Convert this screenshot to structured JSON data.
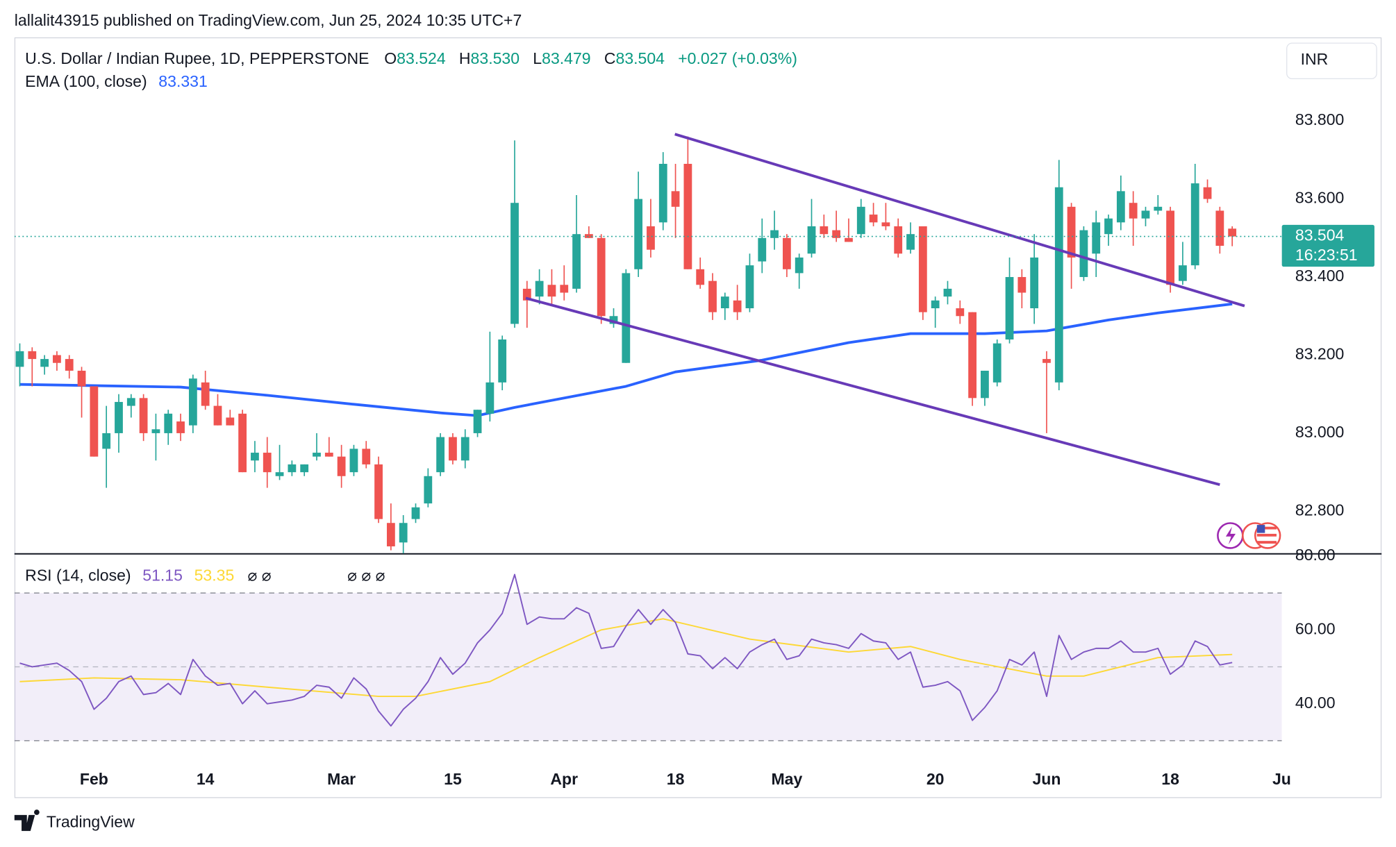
{
  "header": {
    "published": "lallalit43915 published on TradingView.com, Jun 25, 2024 10:35 UTC+7",
    "currency": "INR",
    "brand": "TradingView"
  },
  "chart_data": [
    {
      "type": "candlestick",
      "title": "U.S. Dollar / Indian Rupee, 1D, PEPPERSTONE",
      "readout": [
        "O",
        "83.524",
        "H",
        "83.530",
        "L",
        "83.479",
        "C",
        "83.504",
        "+0.027 (+0.03%)"
      ],
      "countdown": "16:23:51",
      "up_color": "#26a69a",
      "down_color": "#ef5350",
      "categories": [
        null,
        null,
        null,
        null,
        null,
        null,
        "Feb",
        null,
        null,
        null,
        null,
        null,
        null,
        null,
        null,
        "14",
        null,
        null,
        null,
        null,
        null,
        null,
        null,
        null,
        null,
        null,
        "Mar",
        null,
        null,
        null,
        null,
        null,
        null,
        null,
        null,
        "15",
        null,
        null,
        null,
        null,
        null,
        null,
        null,
        null,
        "Apr",
        null,
        null,
        null,
        null,
        null,
        null,
        null,
        null,
        "18",
        null,
        null,
        null,
        null,
        null,
        null,
        null,
        null,
        "May",
        null,
        null,
        null,
        null,
        null,
        null,
        null,
        null,
        null,
        null,
        null,
        "20",
        null,
        null,
        null,
        null,
        null,
        null,
        null,
        null,
        "Jun",
        null,
        null,
        null,
        null,
        null,
        null,
        null,
        null,
        null,
        "18",
        null,
        null,
        null,
        null,
        null,
        null,
        null,
        null,
        "Ju"
      ],
      "open": [
        83.17,
        83.21,
        83.17,
        83.2,
        83.19,
        83.16,
        83.12,
        82.96,
        83.0,
        83.07,
        83.09,
        83.0,
        83.0,
        83.03,
        83.02,
        83.13,
        83.07,
        83.04,
        83.05,
        82.93,
        82.95,
        82.89,
        82.9,
        82.9,
        82.94,
        82.95,
        82.94,
        82.9,
        82.96,
        82.92,
        82.77,
        82.72,
        82.78,
        82.82,
        82.9,
        82.99,
        82.93,
        83.0,
        83.05,
        83.13,
        83.28,
        83.37,
        83.35,
        83.38,
        83.38,
        83.37,
        83.51,
        83.5,
        83.28,
        83.18,
        83.42,
        83.53,
        83.54,
        83.62,
        83.69,
        83.42,
        83.39,
        83.32,
        83.34,
        83.32,
        83.44,
        83.5,
        83.5,
        83.41,
        83.46,
        83.53,
        83.52,
        83.5,
        83.51,
        83.56,
        83.54,
        83.53,
        83.47,
        83.53,
        83.32,
        83.35,
        83.32,
        83.31,
        83.09,
        83.13,
        83.24,
        83.4,
        83.32,
        83.19,
        83.13,
        83.58,
        83.4,
        83.46,
        83.51,
        83.54,
        83.59,
        83.55,
        83.57,
        83.57,
        83.39,
        83.43,
        83.63,
        83.57,
        83.524,
        null,
        null,
        null,
        null
      ],
      "high": [
        83.23,
        83.22,
        83.2,
        83.21,
        83.2,
        83.17,
        83.12,
        83.07,
        83.1,
        83.1,
        83.1,
        83.05,
        83.06,
        83.05,
        83.15,
        83.16,
        83.1,
        83.06,
        83.06,
        82.98,
        82.99,
        82.97,
        82.93,
        82.92,
        83.0,
        82.99,
        82.97,
        82.97,
        82.98,
        82.94,
        82.82,
        82.79,
        82.82,
        82.91,
        83.0,
        83.0,
        83.01,
        83.06,
        83.26,
        83.25,
        83.75,
        83.39,
        83.42,
        83.42,
        83.43,
        83.61,
        83.53,
        83.51,
        83.32,
        83.42,
        83.67,
        83.6,
        83.72,
        83.69,
        83.76,
        83.45,
        83.41,
        83.36,
        83.38,
        83.46,
        83.55,
        83.57,
        83.51,
        83.46,
        83.6,
        83.56,
        83.57,
        83.55,
        83.6,
        83.59,
        83.59,
        83.55,
        83.54,
        83.53,
        83.35,
        83.39,
        83.34,
        83.31,
        83.16,
        83.24,
        83.45,
        83.42,
        83.51,
        83.21,
        83.7,
        83.59,
        83.53,
        83.57,
        83.56,
        83.66,
        83.62,
        83.58,
        83.61,
        83.58,
        83.49,
        83.69,
        83.65,
        83.58,
        83.53,
        null,
        null,
        null,
        null
      ],
      "low": [
        83.12,
        83.12,
        83.15,
        83.16,
        83.14,
        83.04,
        82.94,
        82.86,
        82.95,
        83.04,
        82.98,
        82.93,
        82.97,
        82.98,
        83.0,
        83.06,
        83.02,
        83.02,
        82.9,
        82.9,
        82.86,
        82.88,
        82.89,
        82.89,
        82.93,
        82.94,
        82.86,
        82.89,
        82.91,
        82.77,
        82.7,
        82.69,
        82.77,
        82.81,
        82.89,
        82.92,
        82.91,
        82.99,
        83.03,
        83.11,
        83.27,
        83.27,
        83.33,
        83.33,
        83.34,
        83.36,
        83.5,
        83.28,
        83.27,
        83.18,
        83.4,
        83.45,
        83.52,
        83.5,
        83.42,
        83.37,
        83.29,
        83.29,
        83.29,
        83.31,
        83.41,
        83.47,
        83.4,
        83.37,
        83.45,
        83.5,
        83.49,
        83.49,
        83.5,
        83.53,
        83.52,
        83.45,
        83.46,
        83.29,
        83.27,
        83.33,
        83.28,
        83.07,
        83.07,
        83.12,
        83.23,
        83.32,
        83.28,
        83.0,
        83.11,
        83.37,
        83.39,
        83.4,
        83.48,
        83.52,
        83.48,
        83.53,
        83.56,
        83.36,
        83.38,
        83.42,
        83.59,
        83.46,
        83.479,
        null,
        null,
        null,
        null
      ],
      "close": [
        83.21,
        83.19,
        83.19,
        83.18,
        83.16,
        83.12,
        82.94,
        83.0,
        83.08,
        83.09,
        83.0,
        83.01,
        83.05,
        83.0,
        83.14,
        83.07,
        83.02,
        83.02,
        82.9,
        82.95,
        82.9,
        82.9,
        82.92,
        82.92,
        82.95,
        82.94,
        82.89,
        82.96,
        82.92,
        82.78,
        82.71,
        82.77,
        82.81,
        82.89,
        82.99,
        82.93,
        82.99,
        83.06,
        83.13,
        83.24,
        83.59,
        83.34,
        83.39,
        83.35,
        83.36,
        83.51,
        83.5,
        83.3,
        83.3,
        83.41,
        83.6,
        83.47,
        83.69,
        83.58,
        83.42,
        83.38,
        83.31,
        83.35,
        83.31,
        83.43,
        83.5,
        83.52,
        83.42,
        83.45,
        83.53,
        83.51,
        83.5,
        83.49,
        83.58,
        83.54,
        83.53,
        83.46,
        83.51,
        83.31,
        83.34,
        83.37,
        83.3,
        83.09,
        83.16,
        83.23,
        83.4,
        83.36,
        83.45,
        83.18,
        83.63,
        83.45,
        83.52,
        83.54,
        83.55,
        83.62,
        83.55,
        83.57,
        83.58,
        83.38,
        83.43,
        83.64,
        83.6,
        83.48,
        83.504,
        null,
        null,
        null,
        null
      ],
      "overlays": [
        {
          "name": "EMA (100, close)",
          "color": "#2962ff",
          "x": [
            0,
            13,
            20,
            27,
            34,
            37,
            40,
            49,
            53,
            60,
            67,
            72,
            78,
            83,
            88,
            92,
            98
          ],
          "values": [
            83.125,
            83.118,
            83.097,
            83.074,
            83.052,
            83.045,
            83.066,
            83.12,
            83.157,
            83.187,
            83.232,
            83.255,
            83.255,
            83.262,
            83.29,
            83.308,
            83.331
          ]
        }
      ],
      "trendlines": [
        {
          "color": "#673ab7",
          "x": [
            52.95,
            99.0
          ],
          "values": [
            83.766,
            83.326
          ]
        },
        {
          "color": "#673ab7",
          "x": [
            40.9,
            97.0
          ],
          "values": [
            83.346,
            82.868
          ]
        }
      ],
      "ylim": [
        82.692,
        84.014
      ],
      "yticks": [
        {
          "value": 82.8,
          "label": "82.800"
        },
        {
          "value": 83.0,
          "label": "83.000"
        },
        {
          "value": 83.2,
          "label": "83.200"
        },
        {
          "value": 83.4,
          "label": "83.400"
        },
        {
          "value": 83.6,
          "label": "83.600"
        },
        {
          "value": 83.8,
          "label": "83.800"
        }
      ]
    },
    {
      "type": "line",
      "title": "RSI (14, close)",
      "symbols": [
        "⌀ ⌀",
        "⌀ ⌀ ⌀"
      ],
      "band": [
        30,
        70
      ],
      "band_color": "#7e57c2",
      "midline": 50,
      "series": [
        {
          "color": "#7e57c2",
          "values": [
            51,
            50,
            50.5,
            51,
            49,
            46,
            38.5,
            41.5,
            46,
            47.5,
            42.5,
            43,
            45.5,
            42.5,
            52,
            47.5,
            45,
            45.5,
            40,
            43.5,
            40,
            40.5,
            41,
            42,
            45,
            44.5,
            41.5,
            47,
            44,
            38,
            34,
            38.5,
            41.5,
            46,
            52.5,
            48,
            51,
            56.5,
            60,
            64.5,
            75,
            61.5,
            63.5,
            63,
            63,
            66,
            64.5,
            55,
            55.5,
            61,
            65.5,
            61.5,
            65.5,
            62,
            53.5,
            53,
            49.5,
            52.5,
            49.5,
            54,
            56,
            57.5,
            52,
            53,
            57.5,
            56.5,
            56,
            55,
            59,
            57,
            56.5,
            52,
            54,
            44.5,
            45,
            46,
            43.5,
            35.5,
            39,
            43.5,
            52,
            50.5,
            54,
            42,
            58.5,
            52,
            54,
            55,
            55,
            57,
            54,
            54,
            55,
            48,
            50.5,
            57,
            55.5,
            50.5,
            51.15,
            null,
            null,
            null,
            null
          ]
        },
        {
          "color": "#fdd835",
          "x": [
            0,
            6,
            13,
            20,
            29,
            32,
            38,
            42,
            47,
            52,
            59,
            67,
            72,
            76,
            83,
            86,
            92,
            98
          ],
          "values": [
            46,
            47,
            46.5,
            44.5,
            42,
            42,
            46,
            52.5,
            60,
            63,
            57.5,
            54,
            55.5,
            52,
            47.5,
            47.5,
            52.5,
            53.35
          ]
        }
      ],
      "ylim": [
        27.95,
        80.48
      ],
      "yticks": [
        {
          "value": 40,
          "label": "40.00"
        },
        {
          "value": 60,
          "label": "60.00"
        },
        {
          "value": 80,
          "label": "80.00"
        }
      ]
    }
  ]
}
